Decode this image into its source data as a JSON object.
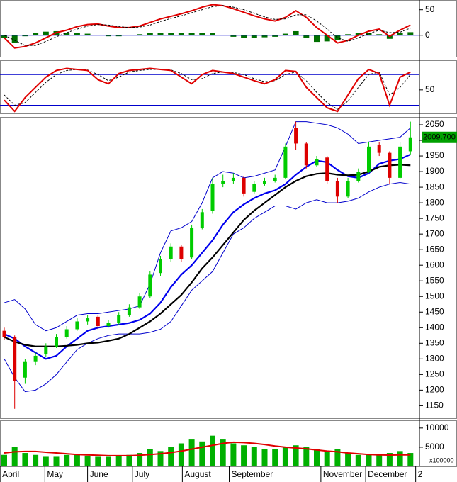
{
  "chart_data": [
    {
      "type": "macd",
      "ylim": [
        -42,
        69
      ],
      "yticks": [
        0,
        50
      ],
      "zero_line_color": "#0000cc",
      "series": [
        {
          "name": "MACD",
          "color": "#e00000",
          "values": [
            -5,
            -25,
            -22,
            -15,
            -5,
            5,
            10,
            17,
            21,
            22,
            18,
            15,
            15,
            18,
            25,
            32,
            37,
            42,
            48,
            55,
            60,
            58,
            52,
            45,
            38,
            32,
            28,
            35,
            48,
            35,
            15,
            0,
            -15,
            -10,
            0,
            8,
            12,
            -2,
            10,
            20
          ]
        },
        {
          "name": "Signal",
          "color": "#000000",
          "dashed": true,
          "values": [
            0,
            -10,
            -20,
            -20,
            -12,
            -3,
            5,
            12,
            18,
            21,
            20,
            17,
            15,
            16,
            20,
            27,
            33,
            38,
            44,
            50,
            56,
            58,
            55,
            50,
            43,
            36,
            31,
            32,
            40,
            40,
            28,
            12,
            -5,
            -12,
            -5,
            3,
            10,
            5,
            6,
            14
          ]
        },
        {
          "name": "Histogram",
          "color": "#007000",
          "bars": true,
          "values": [
            -5,
            -15,
            -2,
            5,
            7,
            8,
            5,
            5,
            3,
            1,
            -2,
            -2,
            0,
            2,
            5,
            5,
            4,
            4,
            4,
            5,
            4,
            0,
            -3,
            -5,
            -5,
            -4,
            -3,
            3,
            8,
            -5,
            -13,
            -12,
            -10,
            2,
            5,
            5,
            2,
            -7,
            4,
            6
          ]
        }
      ]
    },
    {
      "type": "oscillator",
      "ylim": [
        4,
        108
      ],
      "yticks": [
        50
      ],
      "levels": [
        80,
        20
      ],
      "level_color": "#0000cc",
      "series": [
        {
          "name": "%K",
          "color": "#e00000",
          "values": [
            30,
            8,
            35,
            55,
            75,
            88,
            92,
            90,
            88,
            70,
            62,
            82,
            88,
            90,
            92,
            90,
            88,
            75,
            62,
            80,
            88,
            85,
            82,
            75,
            68,
            62,
            70,
            88,
            86,
            55,
            35,
            15,
            8,
            40,
            72,
            90,
            82,
            20,
            75,
            85
          ]
        },
        {
          "name": "%D",
          "color": "#000000",
          "dashed": true,
          "values": [
            40,
            20,
            25,
            45,
            65,
            80,
            88,
            90,
            89,
            80,
            68,
            75,
            85,
            88,
            90,
            90,
            89,
            82,
            70,
            72,
            82,
            85,
            84,
            80,
            72,
            66,
            68,
            80,
            85,
            68,
            45,
            25,
            12,
            28,
            55,
            80,
            85,
            40,
            55,
            80
          ]
        }
      ]
    },
    {
      "type": "candlestick",
      "ylim": [
        1110,
        2075
      ],
      "yticks": [
        1150,
        1200,
        1250,
        1300,
        1350,
        1400,
        1450,
        1500,
        1550,
        1600,
        1650,
        1700,
        1750,
        1800,
        1850,
        1900,
        1950,
        2000,
        2050
      ],
      "up_color": "#00cc00",
      "down_color": "#dd0000",
      "open": [
        1390,
        1370,
        1240,
        1290,
        1315,
        1340,
        1370,
        1395,
        1420,
        1435,
        1405,
        1415,
        1440,
        1465,
        1500,
        1575,
        1620,
        1660,
        1625,
        1720,
        1775,
        1860,
        1870,
        1880,
        1835,
        1860,
        1870,
        1880,
        2040,
        1990,
        1920,
        1945,
        1870,
        1820,
        1870,
        1900,
        1985,
        1960,
        1880,
        1965
      ],
      "high": [
        1400,
        1375,
        1300,
        1320,
        1350,
        1380,
        1405,
        1430,
        1440,
        1440,
        1425,
        1450,
        1475,
        1510,
        1580,
        1630,
        1670,
        1665,
        1730,
        1780,
        1880,
        1890,
        1895,
        1885,
        1870,
        1880,
        1890,
        1990,
        2060,
        1995,
        1950,
        1950,
        1880,
        1880,
        1910,
        1995,
        1995,
        1965,
        1995,
        2060
      ],
      "low": [
        1360,
        1140,
        1220,
        1280,
        1305,
        1335,
        1365,
        1390,
        1410,
        1395,
        1400,
        1410,
        1435,
        1460,
        1495,
        1565,
        1610,
        1610,
        1620,
        1715,
        1765,
        1850,
        1860,
        1820,
        1830,
        1855,
        1865,
        1875,
        1970,
        1910,
        1915,
        1860,
        1800,
        1815,
        1865,
        1895,
        1950,
        1860,
        1875,
        1955
      ],
      "close": [
        1370,
        1230,
        1290,
        1310,
        1340,
        1370,
        1395,
        1420,
        1430,
        1405,
        1415,
        1440,
        1465,
        1500,
        1570,
        1620,
        1660,
        1620,
        1720,
        1770,
        1860,
        1870,
        1880,
        1830,
        1860,
        1870,
        1880,
        1980,
        1990,
        1920,
        1940,
        1870,
        1820,
        1870,
        1900,
        1980,
        1960,
        1880,
        1980,
        2009.7
      ],
      "last_price_label": "2009.700",
      "series": [
        {
          "name": "BB upper",
          "color": "#0000cc",
          "width": 1,
          "values": [
            1480,
            1490,
            1460,
            1410,
            1390,
            1400,
            1420,
            1440,
            1445,
            1445,
            1450,
            1455,
            1460,
            1470,
            1540,
            1640,
            1710,
            1720,
            1740,
            1800,
            1880,
            1900,
            1895,
            1880,
            1885,
            1895,
            1905,
            1980,
            2060,
            2060,
            2055,
            2050,
            2040,
            2020,
            1990,
            1995,
            2000,
            2005,
            2010,
            2040
          ]
        },
        {
          "name": "BB lower",
          "color": "#0000cc",
          "width": 1,
          "values": [
            1300,
            1240,
            1195,
            1200,
            1220,
            1250,
            1290,
            1330,
            1350,
            1365,
            1375,
            1380,
            1380,
            1380,
            1385,
            1395,
            1420,
            1470,
            1520,
            1550,
            1580,
            1640,
            1700,
            1720,
            1750,
            1770,
            1790,
            1790,
            1780,
            1800,
            1810,
            1800,
            1800,
            1805,
            1815,
            1835,
            1850,
            1860,
            1865,
            1860
          ]
        },
        {
          "name": "MA20",
          "color": "#0000ee",
          "width": 2.2,
          "values": [
            1380,
            1365,
            1340,
            1320,
            1300,
            1310,
            1340,
            1365,
            1390,
            1400,
            1405,
            1410,
            1415,
            1425,
            1445,
            1480,
            1530,
            1570,
            1600,
            1640,
            1680,
            1730,
            1770,
            1795,
            1815,
            1830,
            1840,
            1860,
            1890,
            1915,
            1935,
            1930,
            1905,
            1885,
            1880,
            1895,
            1925,
            1935,
            1940,
            1955
          ]
        },
        {
          "name": "MA50",
          "color": "#000000",
          "width": 2.2,
          "values": [
            1370,
            1355,
            1345,
            1340,
            1340,
            1340,
            1342,
            1345,
            1350,
            1352,
            1358,
            1365,
            1380,
            1400,
            1420,
            1445,
            1475,
            1505,
            1545,
            1590,
            1625,
            1665,
            1705,
            1745,
            1775,
            1800,
            1825,
            1850,
            1870,
            1885,
            1893,
            1895,
            1890,
            1888,
            1890,
            1900,
            1915,
            1920,
            1922,
            1920
          ]
        }
      ]
    },
    {
      "type": "volume",
      "ylim": [
        0,
        12000
      ],
      "yticks": [
        5000,
        10000
      ],
      "unit_label": "x100000",
      "color": "#00b000",
      "values": [
        3000,
        5000,
        3500,
        3000,
        2500,
        2500,
        3000,
        3000,
        2800,
        2500,
        2500,
        2800,
        3000,
        3500,
        4500,
        4000,
        5000,
        6000,
        7000,
        6500,
        8000,
        7000,
        6000,
        5500,
        5000,
        4500,
        4500,
        5000,
        5500,
        5000,
        4500,
        4000,
        4500,
        3500,
        3000,
        3000,
        3000,
        3500,
        4000,
        3500
      ],
      "series": [
        {
          "name": "Volume MA",
          "color": "#e00000",
          "values": [
            3500,
            3800,
            3900,
            3900,
            3700,
            3500,
            3300,
            3100,
            3000,
            2900,
            2800,
            2800,
            2800,
            2900,
            3100,
            3300,
            3600,
            4000,
            4500,
            5000,
            5500,
            6000,
            6300,
            6200,
            6000,
            5700,
            5300,
            5000,
            4800,
            4600,
            4300,
            4000,
            3800,
            3500,
            3300,
            3100,
            3000,
            2950,
            3000,
            3000
          ]
        }
      ],
      "x_labels": [
        "April",
        "May",
        "June",
        "July",
        "August",
        "September",
        "November",
        "December",
        "2"
      ],
      "x_label_positions": [
        -0.4,
        3.9,
        8,
        12.3,
        17.1,
        21.6,
        30.4,
        34.7,
        39.5
      ]
    }
  ]
}
